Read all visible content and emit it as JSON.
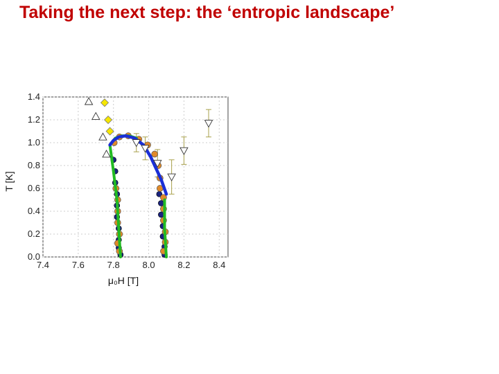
{
  "slide": {
    "title": "Taking the next step: the ‘entropic landscape’"
  },
  "chart_data": {
    "type": "scatter",
    "title": "",
    "xlabel": "μ₀H [T]",
    "ylabel": "T [K]",
    "xlim": [
      7.4,
      8.45
    ],
    "ylim": [
      0.0,
      1.4
    ],
    "xticks": [
      "7.4",
      "7.6",
      "7.8",
      "8.0",
      "8.2",
      "8.4"
    ],
    "yticks": [
      "0.0",
      "0.2",
      "0.4",
      "0.6",
      "0.8",
      "1.0",
      "1.2",
      "1.4"
    ],
    "grid": true,
    "legend": "none",
    "colors": {
      "green": "#22bb22",
      "blue": "#1a2fd6",
      "orange": "#e08a2a",
      "yellow": "#f5e600",
      "navy": "#1a237e",
      "errorbar": "#a8a04a",
      "grid": "#cccccc"
    },
    "series": [
      {
        "marker": "triangle-up-open",
        "points": [
          [
            7.66,
            1.36
          ],
          [
            7.7,
            1.23
          ],
          [
            7.74,
            1.05
          ],
          [
            7.76,
            0.9
          ]
        ]
      },
      {
        "marker": "diamond-yellow",
        "points": [
          [
            7.75,
            1.35
          ],
          [
            7.77,
            1.2
          ],
          [
            7.78,
            1.1
          ]
        ]
      },
      {
        "marker": "triangle-down-open",
        "points": [
          [
            8.34,
            1.17
          ],
          [
            8.2,
            0.93
          ],
          [
            8.13,
            0.7
          ],
          [
            8.05,
            0.82
          ],
          [
            7.98,
            0.95
          ],
          [
            7.93,
            1.0
          ]
        ],
        "errors": [
          0.12,
          0.12,
          0.15,
          0.12,
          0.1,
          0.08
        ]
      },
      {
        "marker": "circle-orange",
        "points": [
          [
            7.8,
            1.0
          ],
          [
            7.83,
            1.05
          ],
          [
            7.88,
            1.06
          ],
          [
            7.94,
            1.03
          ],
          [
            7.99,
            0.98
          ],
          [
            8.03,
            0.9
          ],
          [
            8.05,
            0.8
          ],
          [
            8.06,
            0.69
          ],
          [
            7.81,
            0.6
          ],
          [
            7.82,
            0.5
          ],
          [
            7.82,
            0.4
          ],
          [
            7.82,
            0.3
          ],
          [
            7.83,
            0.2
          ],
          [
            7.82,
            0.12
          ],
          [
            7.83,
            0.05
          ],
          [
            8.06,
            0.6
          ],
          [
            8.08,
            0.52
          ],
          [
            8.08,
            0.42
          ],
          [
            8.08,
            0.32
          ],
          [
            8.09,
            0.22
          ],
          [
            8.09,
            0.13
          ],
          [
            8.08,
            0.05
          ]
        ]
      },
      {
        "marker": "circle-navy",
        "points": [
          [
            7.8,
            0.85
          ],
          [
            7.81,
            0.75
          ],
          [
            7.81,
            0.65
          ],
          [
            7.82,
            0.55
          ],
          [
            7.82,
            0.45
          ],
          [
            7.82,
            0.35
          ],
          [
            7.83,
            0.25
          ],
          [
            7.83,
            0.15
          ],
          [
            7.83,
            0.08
          ],
          [
            7.84,
            0.02
          ],
          [
            8.06,
            0.55
          ],
          [
            8.07,
            0.47
          ],
          [
            8.07,
            0.37
          ],
          [
            8.08,
            0.27
          ],
          [
            8.08,
            0.18
          ],
          [
            8.09,
            0.09
          ],
          [
            8.09,
            0.02
          ]
        ]
      },
      {
        "marker": "line-blue",
        "points": [
          [
            7.78,
            0.98
          ],
          [
            7.8,
            1.02
          ],
          [
            7.83,
            1.05
          ],
          [
            7.87,
            1.06
          ],
          [
            7.92,
            1.04
          ],
          [
            7.97,
            0.98
          ],
          [
            8.01,
            0.88
          ],
          [
            8.04,
            0.78
          ],
          [
            8.07,
            0.68
          ],
          [
            8.1,
            0.55
          ]
        ]
      },
      {
        "marker": "line-green-left",
        "points": [
          [
            7.78,
            0.98
          ],
          [
            7.8,
            0.75
          ],
          [
            7.82,
            0.5
          ],
          [
            7.83,
            0.25
          ],
          [
            7.84,
            0.0
          ]
        ]
      },
      {
        "marker": "line-green-right",
        "points": [
          [
            8.09,
            0.5
          ],
          [
            8.09,
            0.25
          ],
          [
            8.1,
            0.0
          ]
        ]
      },
      {
        "marker": "line-green-top",
        "points": [
          [
            7.78,
            0.98
          ],
          [
            7.81,
            1.04
          ],
          [
            7.85,
            1.06
          ],
          [
            7.89,
            1.06
          ],
          [
            7.93,
            1.04
          ]
        ]
      }
    ]
  }
}
